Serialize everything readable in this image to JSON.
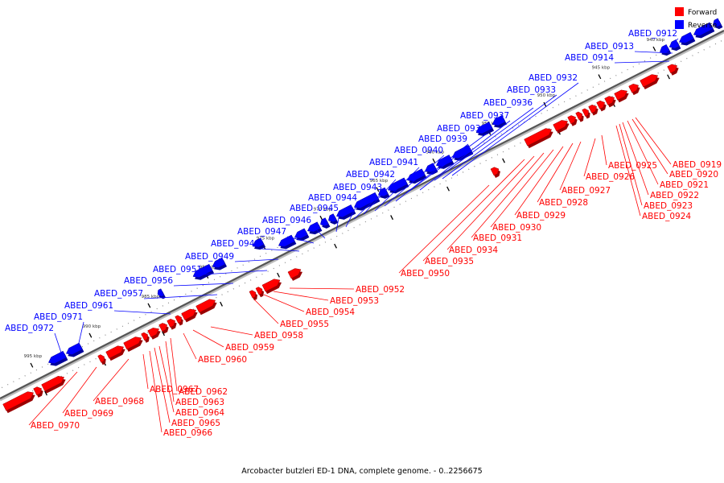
{
  "legend": {
    "forward": {
      "label": "Forward",
      "color": "#ff0000"
    },
    "reverse": {
      "label": "Reverse",
      "color": "#0000ff"
    }
  },
  "caption": "Arcobacter butzleri ED-1 DNA, complete genome. - 0..2256675",
  "ticks": [
    "940 kbp",
    "945 kbp",
    "950 kbp",
    "955 kbp",
    "960 kbp",
    "965 kbp",
    "970 kbp",
    "975 kbp",
    "980 kbp",
    "985 kbp",
    "990 kbp",
    "995 kbp"
  ],
  "reverse_labels": [
    "ABED_0912",
    "ABED_0913",
    "ABED_0914",
    "ABED_0932",
    "ABED_0933",
    "ABED_0936",
    "ABED_0937",
    "ABED_0938",
    "ABED_0939",
    "ABED_0940",
    "ABED_0941",
    "ABED_0942",
    "ABED_0943",
    "ABED_0944",
    "ABED_0945",
    "ABED_0946",
    "ABED_0947",
    "ABED_0948",
    "ABED_0949",
    "ABED_0951",
    "ABED_0956",
    "ABED_0957",
    "ABED_0961",
    "ABED_0971",
    "ABED_0972"
  ],
  "forward_labels": [
    "ABED_0919",
    "ABED_0920",
    "ABED_0921",
    "ABED_0922",
    "ABED_0923",
    "ABED_0924",
    "ABED_0925",
    "ABED_0926",
    "ABED_0927",
    "ABED_0928",
    "ABED_0929",
    "ABED_0930",
    "ABED_0931",
    "ABED_0934",
    "ABED_0935",
    "ABED_0950",
    "ABED_0952",
    "ABED_0953",
    "ABED_0954",
    "ABED_0955",
    "ABED_0958",
    "ABED_0959",
    "ABED_0960",
    "ABED_0962",
    "ABED_0963",
    "ABED_0964",
    "ABED_0965",
    "ABED_0966",
    "ABED_0967",
    "ABED_0968",
    "ABED_0969",
    "ABED_0970"
  ]
}
